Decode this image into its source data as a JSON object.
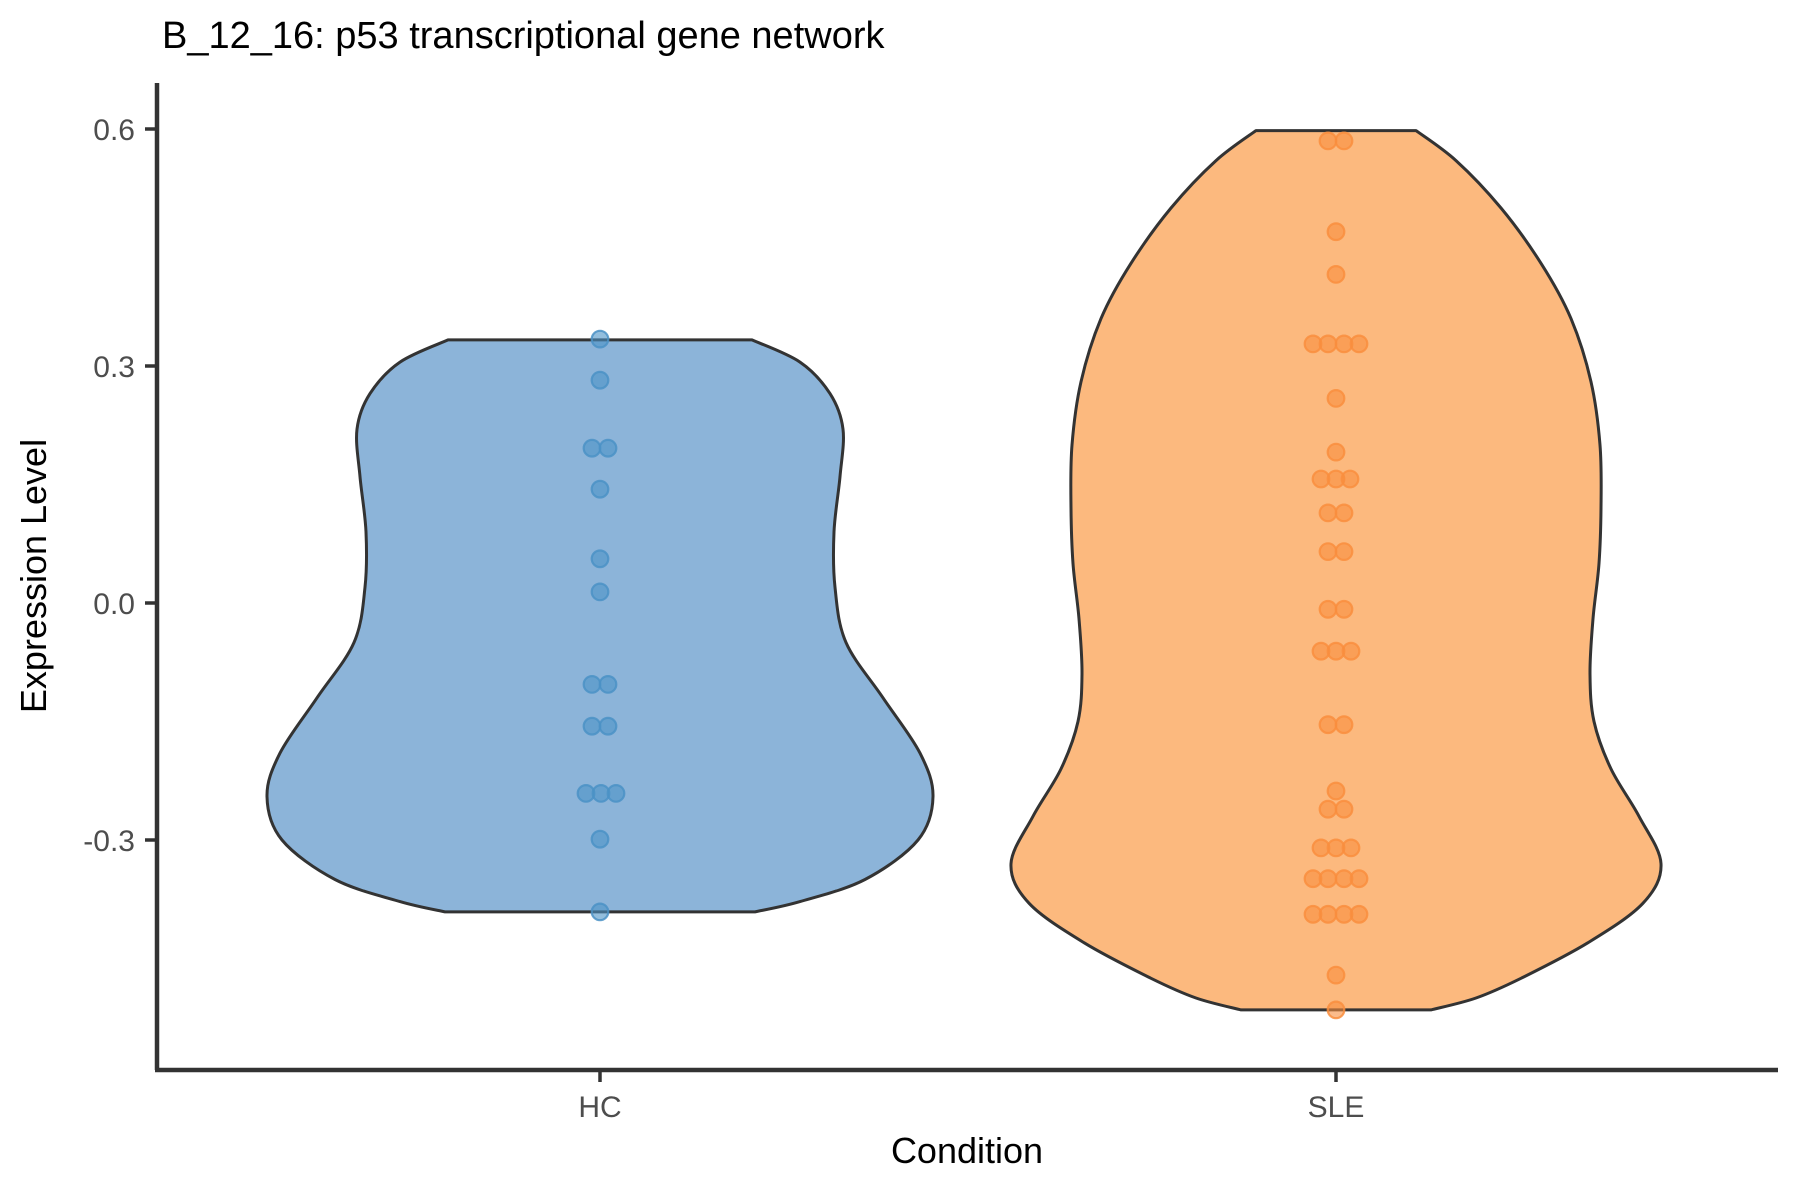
{
  "title": "B_12_16: p53 transcriptional gene network",
  "style": {
    "background": "#FFFFFF",
    "axis_line_color": "#333333",
    "violin_outline_color": "#333333",
    "tick_label_color": "#4D4D4D",
    "title_color": "#000000"
  },
  "chart_data": {
    "type": "violin",
    "title": "B_12_16: p53 transcriptional gene network",
    "xlabel": "Condition",
    "ylabel": "Expression Level",
    "categories": [
      "HC",
      "SLE"
    ],
    "y_tick_labels": [
      "0.6",
      "0.3",
      "0.0",
      "-0.3"
    ],
    "y_tick_values": [
      0.6,
      0.3,
      0.0,
      -0.3
    ],
    "ylim": [
      -0.59,
      0.66
    ],
    "grid": false,
    "legend": "none",
    "series": [
      {
        "name": "HC",
        "fill": "#8CB4D9",
        "point_color": "#4B92C6",
        "points": [
          {
            "v": 0.334,
            "dx": 0
          },
          {
            "v": 0.282,
            "dx": 0
          },
          {
            "v": 0.196,
            "dx": -8
          },
          {
            "v": 0.196,
            "dx": 8
          },
          {
            "v": 0.144,
            "dx": 0
          },
          {
            "v": 0.056,
            "dx": 0
          },
          {
            "v": 0.014,
            "dx": 0
          },
          {
            "v": -0.103,
            "dx": -8
          },
          {
            "v": -0.103,
            "dx": 8
          },
          {
            "v": -0.156,
            "dx": -8
          },
          {
            "v": -0.156,
            "dx": 8
          },
          {
            "v": -0.241,
            "dx": -14
          },
          {
            "v": -0.241,
            "dx": 1
          },
          {
            "v": -0.241,
            "dx": 16
          },
          {
            "v": -0.299,
            "dx": 0
          },
          {
            "v": -0.391,
            "dx": 0
          }
        ],
        "violin_profile": [
          [
            0.333,
            152
          ],
          [
            0.305,
            200
          ],
          [
            0.265,
            230
          ],
          [
            0.22,
            243
          ],
          [
            0.16,
            240
          ],
          [
            0.09,
            234
          ],
          [
            0.02,
            235
          ],
          [
            -0.05,
            246
          ],
          [
            -0.12,
            283
          ],
          [
            -0.19,
            320
          ],
          [
            -0.245,
            333
          ],
          [
            -0.3,
            318
          ],
          [
            -0.35,
            265
          ],
          [
            -0.378,
            200
          ],
          [
            -0.391,
            155
          ]
        ]
      },
      {
        "name": "SLE",
        "fill": "#FCB97E",
        "point_color": "#F98E3E",
        "points": [
          {
            "v": 0.585,
            "dx": -8
          },
          {
            "v": 0.585,
            "dx": 8
          },
          {
            "v": 0.47,
            "dx": 0
          },
          {
            "v": 0.416,
            "dx": 0
          },
          {
            "v": 0.328,
            "dx": -23
          },
          {
            "v": 0.328,
            "dx": -8
          },
          {
            "v": 0.328,
            "dx": 8
          },
          {
            "v": 0.328,
            "dx": 23
          },
          {
            "v": 0.259,
            "dx": 0
          },
          {
            "v": 0.191,
            "dx": 0
          },
          {
            "v": 0.157,
            "dx": -15
          },
          {
            "v": 0.157,
            "dx": 0
          },
          {
            "v": 0.157,
            "dx": 14
          },
          {
            "v": 0.114,
            "dx": -8
          },
          {
            "v": 0.114,
            "dx": 8
          },
          {
            "v": 0.065,
            "dx": -8
          },
          {
            "v": 0.065,
            "dx": 8
          },
          {
            "v": -0.008,
            "dx": -8
          },
          {
            "v": -0.008,
            "dx": 8
          },
          {
            "v": -0.061,
            "dx": -15
          },
          {
            "v": -0.061,
            "dx": 0
          },
          {
            "v": -0.061,
            "dx": 15
          },
          {
            "v": -0.154,
            "dx": -8
          },
          {
            "v": -0.154,
            "dx": 8
          },
          {
            "v": -0.238,
            "dx": 0
          },
          {
            "v": -0.261,
            "dx": -8
          },
          {
            "v": -0.261,
            "dx": 8
          },
          {
            "v": -0.31,
            "dx": -15
          },
          {
            "v": -0.31,
            "dx": 0
          },
          {
            "v": -0.31,
            "dx": 15
          },
          {
            "v": -0.349,
            "dx": -23
          },
          {
            "v": -0.349,
            "dx": -8
          },
          {
            "v": -0.349,
            "dx": 8
          },
          {
            "v": -0.349,
            "dx": 23
          },
          {
            "v": -0.394,
            "dx": -23
          },
          {
            "v": -0.394,
            "dx": -8
          },
          {
            "v": -0.394,
            "dx": 8
          },
          {
            "v": -0.394,
            "dx": 23
          },
          {
            "v": -0.471,
            "dx": 0
          },
          {
            "v": -0.515,
            "dx": 0
          }
        ],
        "violin_profile": [
          [
            0.598,
            80
          ],
          [
            0.56,
            120
          ],
          [
            0.5,
            165
          ],
          [
            0.43,
            205
          ],
          [
            0.36,
            235
          ],
          [
            0.28,
            255
          ],
          [
            0.2,
            264
          ],
          [
            0.12,
            265
          ],
          [
            0.05,
            263
          ],
          [
            -0.02,
            257
          ],
          [
            -0.09,
            254
          ],
          [
            -0.15,
            258
          ],
          [
            -0.21,
            275
          ],
          [
            -0.27,
            303
          ],
          [
            -0.33,
            325
          ],
          [
            -0.38,
            307
          ],
          [
            -0.43,
            252
          ],
          [
            -0.475,
            185
          ],
          [
            -0.5,
            140
          ],
          [
            -0.515,
            95
          ]
        ]
      }
    ]
  }
}
